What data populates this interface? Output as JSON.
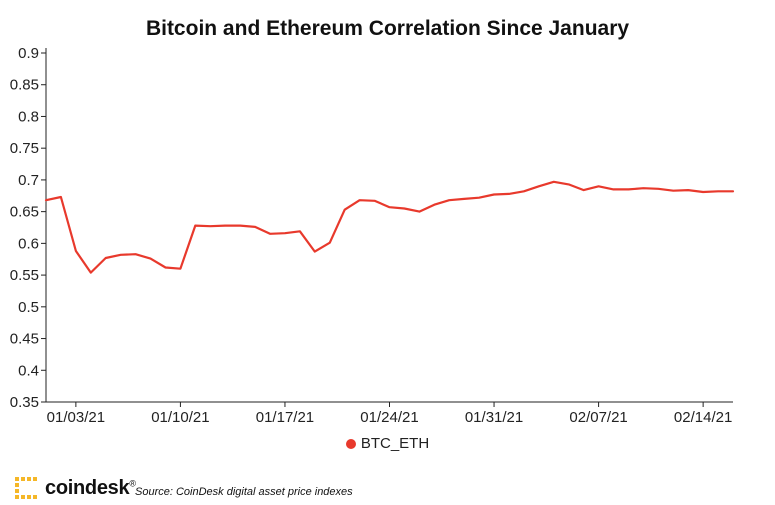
{
  "chart_data": {
    "type": "line",
    "title": "Bitcoin and Ethereum Correlation Since January",
    "xlabel": "",
    "ylabel": "",
    "ylim": [
      0.35,
      0.9
    ],
    "yticks": [
      "0.35",
      "0.4",
      "0.45",
      "0.5",
      "0.55",
      "0.6",
      "0.65",
      "0.7",
      "0.75",
      "0.8",
      "0.85",
      "0.9"
    ],
    "xticks": [
      "01/03/21",
      "01/10/21",
      "01/17/21",
      "01/24/21",
      "01/31/21",
      "02/07/21",
      "02/14/21"
    ],
    "grid": false,
    "legend_position": "bottom",
    "x": [
      "2021-01-01",
      "2021-01-02",
      "2021-01-03",
      "2021-01-04",
      "2021-01-05",
      "2021-01-06",
      "2021-01-07",
      "2021-01-08",
      "2021-01-09",
      "2021-01-10",
      "2021-01-11",
      "2021-01-12",
      "2021-01-13",
      "2021-01-14",
      "2021-01-15",
      "2021-01-16",
      "2021-01-17",
      "2021-01-18",
      "2021-01-19",
      "2021-01-20",
      "2021-01-21",
      "2021-01-22",
      "2021-01-23",
      "2021-01-24",
      "2021-01-25",
      "2021-01-26",
      "2021-01-27",
      "2021-01-28",
      "2021-01-29",
      "2021-01-30",
      "2021-01-31",
      "2021-02-01",
      "2021-02-02",
      "2021-02-03",
      "2021-02-04",
      "2021-02-05",
      "2021-02-06",
      "2021-02-07",
      "2021-02-08",
      "2021-02-09",
      "2021-02-10",
      "2021-02-11",
      "2021-02-12",
      "2021-02-13",
      "2021-02-14",
      "2021-02-15",
      "2021-02-16"
    ],
    "series": [
      {
        "name": "BTC_ETH",
        "color": "#e8392c",
        "values": [
          0.668,
          0.673,
          0.588,
          0.554,
          0.577,
          0.582,
          0.583,
          0.576,
          0.562,
          0.56,
          0.628,
          0.627,
          0.628,
          0.628,
          0.626,
          0.615,
          0.616,
          0.619,
          0.587,
          0.601,
          0.653,
          0.668,
          0.667,
          0.657,
          0.655,
          0.65,
          0.661,
          0.668,
          0.67,
          0.672,
          0.677,
          0.678,
          0.682,
          0.69,
          0.697,
          0.693,
          0.684,
          0.69,
          0.685,
          0.685,
          0.687,
          0.686,
          0.683,
          0.684,
          0.681,
          0.682,
          0.682
        ]
      }
    ]
  },
  "footer": {
    "logo_text": "coindesk",
    "logo_mark": "®",
    "source": "Source: CoinDesk digital asset price indexes"
  }
}
